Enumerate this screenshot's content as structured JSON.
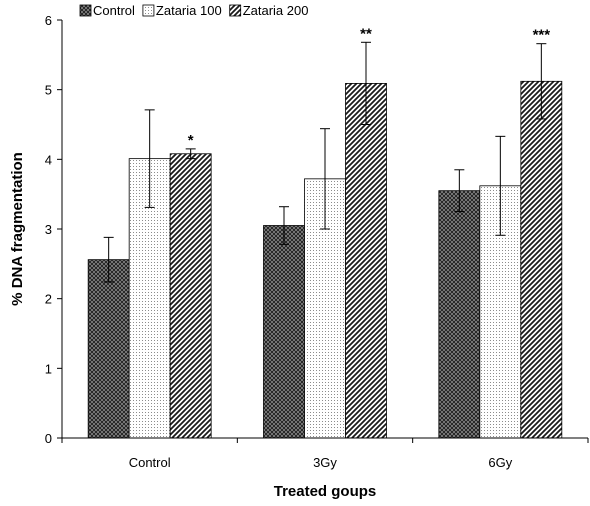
{
  "chart_data": {
    "type": "bar",
    "title": "",
    "xlabel": "Treated goups",
    "ylabel": "% DNA fragmentation",
    "categories": [
      "Control",
      "3Gy",
      "6Gy"
    ],
    "ylim": [
      0,
      6
    ],
    "yticks": [
      "0",
      "1",
      "2",
      "3",
      "4",
      "5",
      "6"
    ],
    "grid": false,
    "legend_position": "top-left",
    "series": [
      {
        "name": "Control",
        "pattern": "crosshatch",
        "values": [
          2.56,
          3.05,
          3.55
        ],
        "errors": [
          0.32,
          0.27,
          0.3
        ]
      },
      {
        "name": "Zataria 100",
        "pattern": "dots",
        "values": [
          4.01,
          3.72,
          3.62
        ],
        "errors": [
          0.7,
          0.72,
          0.71
        ]
      },
      {
        "name": "Zataria 200",
        "pattern": "diagonal",
        "values": [
          4.08,
          5.09,
          5.12
        ],
        "errors": [
          0.07,
          0.59,
          0.54
        ]
      }
    ],
    "annotations": [
      {
        "series": 2,
        "category": 0,
        "text": "*"
      },
      {
        "series": 2,
        "category": 1,
        "text": "**"
      },
      {
        "series": 2,
        "category": 2,
        "text": "***"
      }
    ]
  }
}
